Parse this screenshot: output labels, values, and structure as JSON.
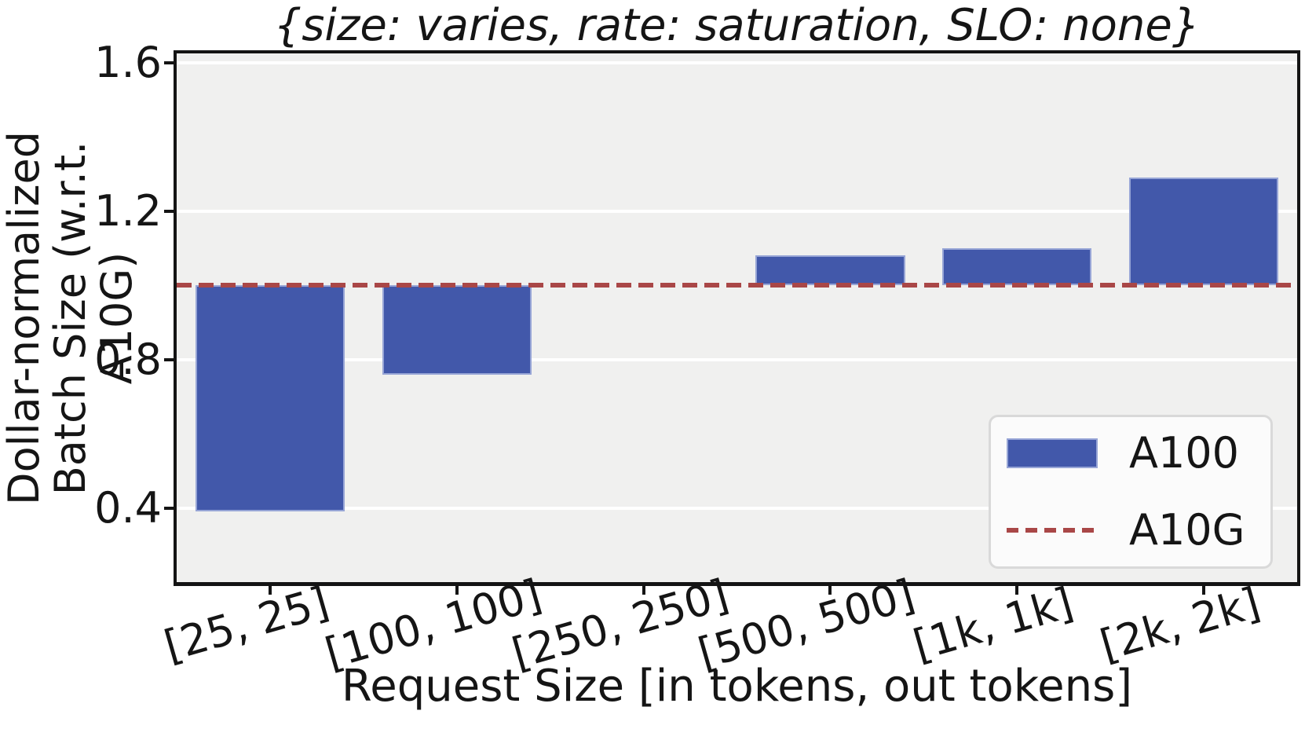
{
  "chart_data": {
    "type": "bar",
    "title": "{size: varies, rate: saturation, SLO: none}",
    "xlabel": "Request Size [in tokens, out tokens]",
    "ylabel": "Dollar-normalized\nBatch Size (w.r.t. A10G)",
    "categories": [
      "[25, 25]",
      "[100, 100]",
      "[250, 250]",
      "[500, 500]",
      "[1k, 1k]",
      "[2k, 2k]"
    ],
    "series": [
      {
        "name": "A100",
        "type": "bar",
        "color": "#4258aa",
        "values": [
          0.39,
          0.76,
          1.0,
          1.08,
          1.1,
          1.29
        ]
      },
      {
        "name": "A10G",
        "type": "dashed-baseline",
        "color": "#a94747",
        "value": 1.0
      }
    ],
    "baseline": 1.0,
    "bar_note": "bars are drawn as deviations from the A10G baseline at 1.0",
    "ylim": [
      0.2,
      1.625
    ],
    "yticks": [
      0.4,
      0.8,
      1.2,
      1.6
    ],
    "grid": "horizontal white gridlines on",
    "legend_position": "lower right",
    "colors": {
      "bar_fill": "#4258aa",
      "bar_edge": "#97a5d6",
      "baseline_dash": "#a94747",
      "plot_background": "#f0f0ef",
      "figure_background": "#ffffff",
      "gridline": "#ffffff",
      "spine": "#141414",
      "text": "#151515",
      "legend_background": "#fbfbfb",
      "legend_border": "#d9d9d9"
    }
  }
}
